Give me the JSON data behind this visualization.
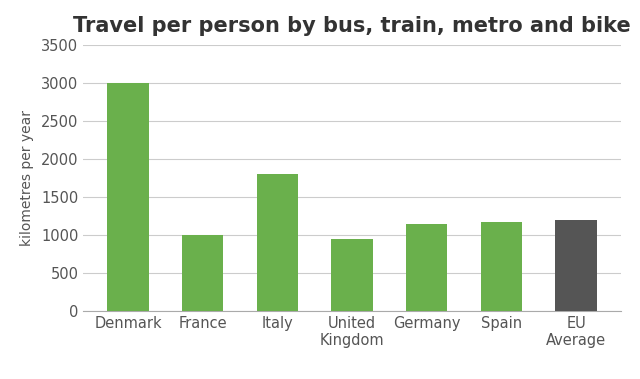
{
  "title": "Travel per person by bus, train, metro and bike",
  "categories": [
    "Denmark",
    "France",
    "Italy",
    "United\nKingdom",
    "Germany",
    "Spain",
    "EU\nAverage"
  ],
  "values": [
    3000,
    1000,
    1800,
    950,
    1150,
    1175,
    1200
  ],
  "bar_colors": [
    "#6ab04c",
    "#6ab04c",
    "#6ab04c",
    "#6ab04c",
    "#6ab04c",
    "#6ab04c",
    "#555555"
  ],
  "ylabel": "kilometres per year",
  "ylim": [
    0,
    3500
  ],
  "yticks": [
    0,
    500,
    1000,
    1500,
    2000,
    2500,
    3000,
    3500
  ],
  "background_color": "#ffffff",
  "grid_color": "#cccccc",
  "title_fontsize": 15,
  "label_fontsize": 10,
  "tick_fontsize": 10.5
}
